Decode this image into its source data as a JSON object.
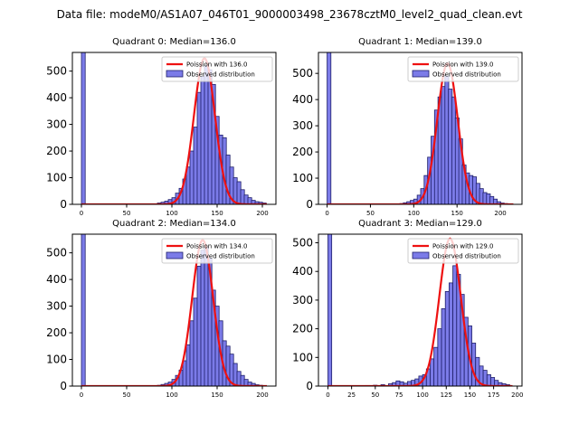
{
  "figure_title": "Data file: modeM0/AS1A07_046T01_9000003498_23678cztM0_level2_quad_clean.evt",
  "colors": {
    "bar_fill": "#7b7be8",
    "bar_edge": "#1f1f6b",
    "fit_line": "#ee1111",
    "axes": "#000000",
    "legend_border": "#cccccc"
  },
  "chart_data": [
    {
      "type": "bar",
      "title": "Quadrant 0: Median=136.0",
      "xlim": [
        -10,
        215
      ],
      "ylim": [
        0,
        570
      ],
      "xticks": [
        0,
        50,
        100,
        150,
        200
      ],
      "yticks": [
        0,
        100,
        200,
        300,
        400,
        500
      ],
      "bin_width": 4.2,
      "observed": {
        "label": "Observed distribution",
        "bins": [
          [
            0,
            570
          ],
          [
            80,
            2
          ],
          [
            84,
            5
          ],
          [
            88,
            8
          ],
          [
            92,
            12
          ],
          [
            96,
            18
          ],
          [
            100,
            25
          ],
          [
            104,
            42
          ],
          [
            108,
            60
          ],
          [
            112,
            95
          ],
          [
            116,
            140
          ],
          [
            120,
            200
          ],
          [
            124,
            290
          ],
          [
            128,
            420
          ],
          [
            132,
            480
          ],
          [
            136,
            520
          ],
          [
            140,
            505
          ],
          [
            144,
            450
          ],
          [
            148,
            330
          ],
          [
            152,
            260
          ],
          [
            156,
            250
          ],
          [
            160,
            185
          ],
          [
            164,
            140
          ],
          [
            168,
            100
          ],
          [
            172,
            85
          ],
          [
            176,
            55
          ],
          [
            180,
            35
          ],
          [
            184,
            25
          ],
          [
            188,
            15
          ],
          [
            192,
            10
          ],
          [
            196,
            8
          ],
          [
            200,
            5
          ]
        ]
      },
      "fit": {
        "label": "Poission with 136.0",
        "mean": 136.0,
        "peak": 548
      }
    },
    {
      "type": "bar",
      "title": "Quadrant 1: Median=139.0",
      "xlim": [
        -10,
        225
      ],
      "ylim": [
        0,
        580
      ],
      "xticks": [
        0,
        50,
        100,
        150,
        200
      ],
      "yticks": [
        0,
        100,
        200,
        300,
        400,
        500
      ],
      "bin_width": 4.4,
      "observed": {
        "label": "Observed distribution",
        "bins": [
          [
            0,
            580
          ],
          [
            84,
            3
          ],
          [
            88,
            6
          ],
          [
            92,
            10
          ],
          [
            96,
            15
          ],
          [
            100,
            20
          ],
          [
            104,
            35
          ],
          [
            108,
            60
          ],
          [
            112,
            110
          ],
          [
            116,
            180
          ],
          [
            120,
            260
          ],
          [
            124,
            360
          ],
          [
            128,
            410
          ],
          [
            132,
            450
          ],
          [
            136,
            490
          ],
          [
            140,
            440
          ],
          [
            144,
            410
          ],
          [
            148,
            330
          ],
          [
            152,
            250
          ],
          [
            156,
            150
          ],
          [
            160,
            120
          ],
          [
            164,
            110
          ],
          [
            168,
            105
          ],
          [
            172,
            80
          ],
          [
            176,
            60
          ],
          [
            180,
            45
          ],
          [
            184,
            40
          ],
          [
            188,
            30
          ],
          [
            192,
            20
          ],
          [
            196,
            10
          ],
          [
            200,
            5
          ],
          [
            204,
            3
          ]
        ]
      },
      "fit": {
        "label": "Poission with 139.0",
        "mean": 139.0,
        "peak": 538
      }
    },
    {
      "type": "bar",
      "title": "Quadrant 2: Median=134.0",
      "xlim": [
        -10,
        215
      ],
      "ylim": [
        0,
        570
      ],
      "xticks": [
        0,
        50,
        100,
        150,
        200
      ],
      "yticks": [
        0,
        100,
        200,
        300,
        400,
        500
      ],
      "bin_width": 4.2,
      "observed": {
        "label": "Observed distribution",
        "bins": [
          [
            0,
            570
          ],
          [
            84,
            3
          ],
          [
            88,
            6
          ],
          [
            92,
            10
          ],
          [
            96,
            15
          ],
          [
            100,
            25
          ],
          [
            104,
            40
          ],
          [
            108,
            60
          ],
          [
            112,
            95
          ],
          [
            116,
            155
          ],
          [
            120,
            245
          ],
          [
            124,
            330
          ],
          [
            128,
            450
          ],
          [
            132,
            510
          ],
          [
            136,
            520
          ],
          [
            140,
            480
          ],
          [
            144,
            360
          ],
          [
            148,
            300
          ],
          [
            152,
            245
          ],
          [
            156,
            170
          ],
          [
            160,
            150
          ],
          [
            164,
            120
          ],
          [
            168,
            85
          ],
          [
            172,
            55
          ],
          [
            176,
            40
          ],
          [
            180,
            25
          ],
          [
            184,
            15
          ],
          [
            188,
            10
          ],
          [
            192,
            5
          ],
          [
            196,
            3
          ]
        ]
      },
      "fit": {
        "label": "Poission with 134.0",
        "mean": 134.0,
        "peak": 548
      }
    },
    {
      "type": "bar",
      "title": "Quadrant 3: Median=129.0",
      "xlim": [
        -10,
        205
      ],
      "ylim": [
        0,
        530
      ],
      "xticks": [
        0,
        25,
        50,
        75,
        100,
        125,
        150,
        175,
        200
      ],
      "yticks": [
        0,
        100,
        200,
        300,
        400,
        500
      ],
      "bin_width": 4.0,
      "observed": {
        "label": "Observed distribution",
        "bins": [
          [
            0,
            530
          ],
          [
            40,
            2
          ],
          [
            48,
            3
          ],
          [
            56,
            5
          ],
          [
            64,
            8
          ],
          [
            68,
            12
          ],
          [
            72,
            18
          ],
          [
            76,
            15
          ],
          [
            80,
            10
          ],
          [
            84,
            16
          ],
          [
            88,
            20
          ],
          [
            92,
            25
          ],
          [
            96,
            35
          ],
          [
            100,
            40
          ],
          [
            104,
            60
          ],
          [
            108,
            95
          ],
          [
            112,
            135
          ],
          [
            116,
            200
          ],
          [
            120,
            270
          ],
          [
            124,
            330
          ],
          [
            128,
            360
          ],
          [
            132,
            420
          ],
          [
            136,
            390
          ],
          [
            140,
            320
          ],
          [
            144,
            240
          ],
          [
            148,
            210
          ],
          [
            152,
            150
          ],
          [
            156,
            100
          ],
          [
            160,
            70
          ],
          [
            164,
            55
          ],
          [
            168,
            40
          ],
          [
            172,
            30
          ],
          [
            176,
            20
          ],
          [
            180,
            12
          ],
          [
            184,
            8
          ],
          [
            188,
            5
          ]
        ]
      },
      "fit": {
        "label": "Poission with 129.0",
        "mean": 129.0,
        "peak": 515
      }
    }
  ]
}
